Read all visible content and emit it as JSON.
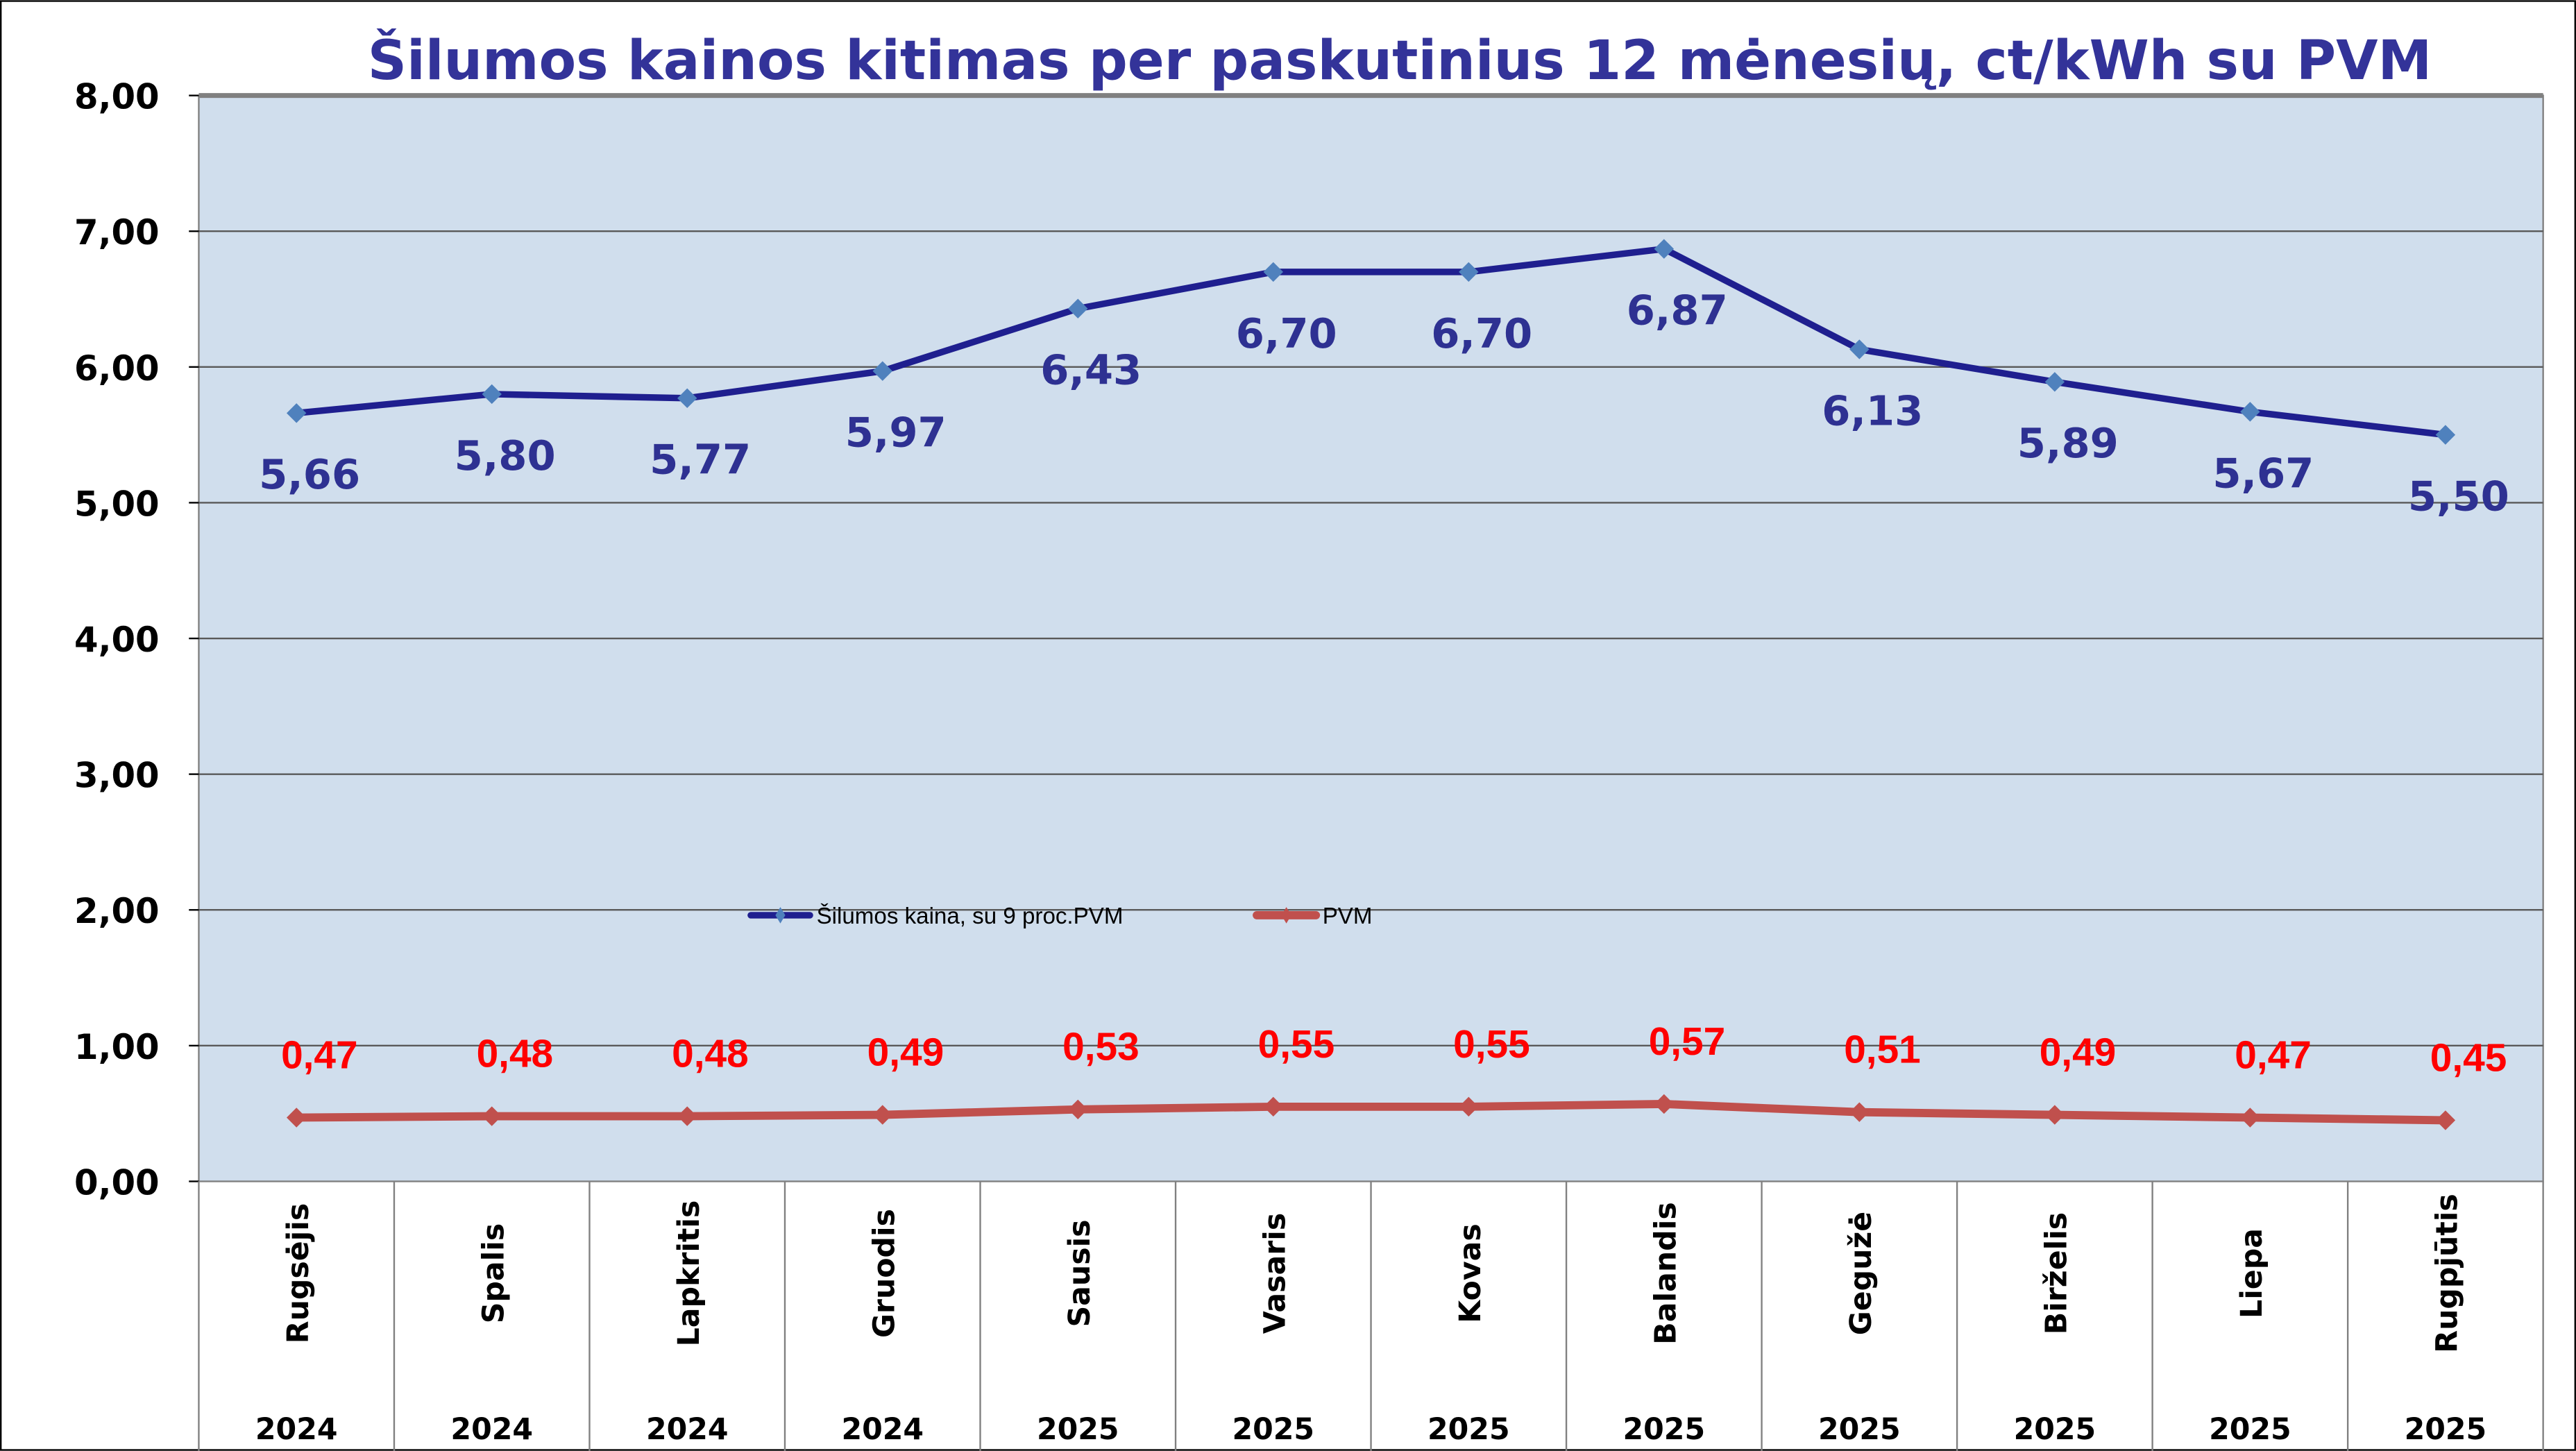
{
  "chart_data": {
    "type": "line",
    "title": "Šilumos kainos kitimas per paskutinius 12 mėnesių, ct/kWh su PVM",
    "categories": [
      "Rugsėjis",
      "Spalis",
      "Lapkritis",
      "Gruodis",
      "Sausis",
      "Vasaris",
      "Kovas",
      "Balandis",
      "Gegužė",
      "Birželis",
      "Liepa",
      "Rugpjūtis"
    ],
    "years": [
      "2024",
      "2024",
      "2024",
      "2024",
      "2025",
      "2025",
      "2025",
      "2025",
      "2025",
      "2025",
      "2025",
      "2025"
    ],
    "series": [
      {
        "name": "Šilumos kaina, su 9 proc.PVM",
        "color": "#1f1f8f",
        "marker_color": "#4f81bd",
        "label_color": "#2e3192",
        "values": [
          5.66,
          5.8,
          5.77,
          5.97,
          6.43,
          6.7,
          6.7,
          6.87,
          6.13,
          5.89,
          5.67,
          5.5
        ],
        "labels": [
          "5,66",
          "5,80",
          "5,77",
          "5,97",
          "6,43",
          "6,70",
          "6,70",
          "6,87",
          "6,13",
          "5,89",
          "5,67",
          "5,50"
        ]
      },
      {
        "name": "PVM",
        "color": "#c0504d",
        "marker_color": "#c0504d",
        "label_color": "#ff0000",
        "values": [
          0.47,
          0.48,
          0.48,
          0.49,
          0.53,
          0.55,
          0.55,
          0.57,
          0.51,
          0.49,
          0.47,
          0.45
        ],
        "labels": [
          "0,47",
          "0,48",
          "0,48",
          "0,49",
          "0,53",
          "0,55",
          "0,55",
          "0,57",
          "0,51",
          "0,49",
          "0,47",
          "0,45"
        ]
      }
    ],
    "yticks": [
      "0,00",
      "1,00",
      "2,00",
      "3,00",
      "4,00",
      "5,00",
      "6,00",
      "7,00",
      "8,00"
    ],
    "ylim": [
      0,
      8
    ],
    "xlabel": "",
    "ylabel": "",
    "grid": true,
    "legend_placement": "center",
    "plot_background": "#d0deed"
  }
}
